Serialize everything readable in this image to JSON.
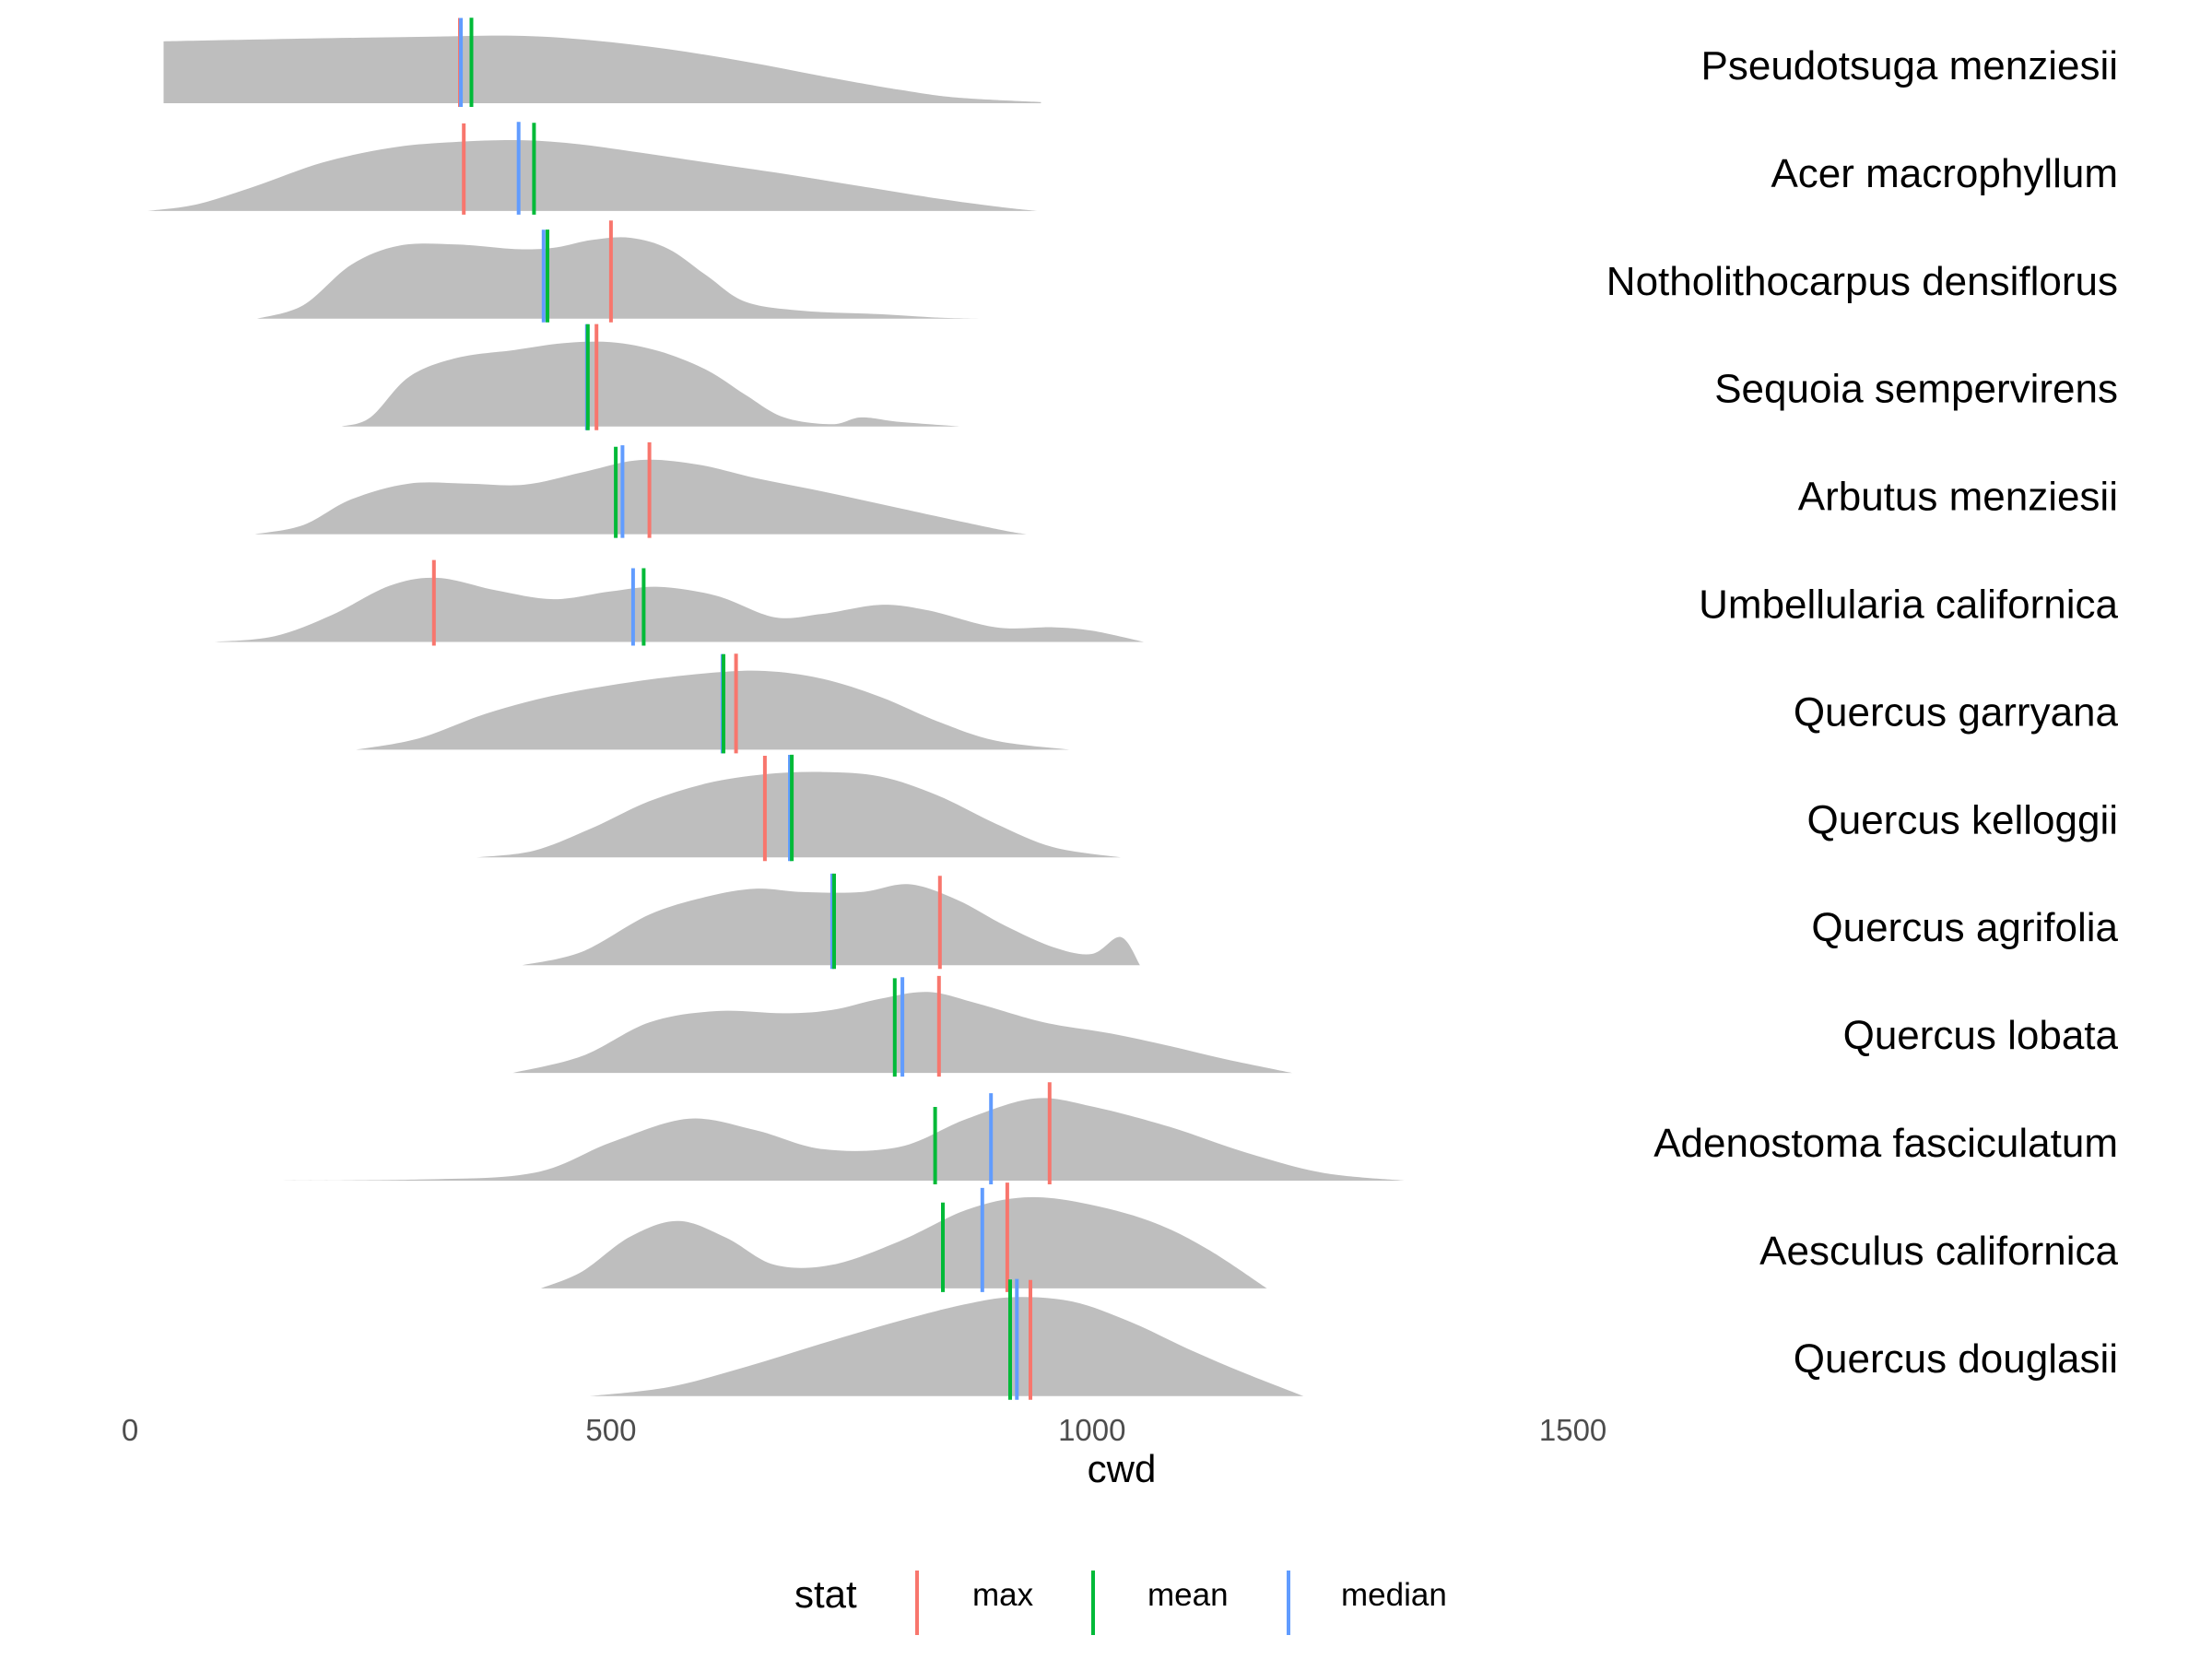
{
  "chart_data": {
    "type": "ridgeline",
    "xlabel": "cwd",
    "ylabel": "",
    "xlim": [
      0,
      1760
    ],
    "x_ticks": [
      {
        "value": 0,
        "label": "0"
      },
      {
        "value": 500,
        "label": "500"
      },
      {
        "value": 1000,
        "label": "1000"
      },
      {
        "value": 1500,
        "label": "1500"
      }
    ],
    "grid": false,
    "density_color": "#bebebe",
    "legend": {
      "title": "stat",
      "position": "bottom",
      "items": [
        {
          "key": "max",
          "label": "max",
          "color": "#f8766d"
        },
        {
          "key": "mean",
          "label": "mean",
          "color": "#00ba38"
        },
        {
          "key": "median",
          "label": "median",
          "color": "#619cff"
        }
      ]
    },
    "series": [
      {
        "name": "Pseudotsuga menziesii",
        "range": [
          35,
          947
        ],
        "density": [
          [
            35,
            0.55
          ],
          [
            150,
            0.57
          ],
          [
            300,
            0.59
          ],
          [
            400,
            0.6
          ],
          [
            480,
            0.56
          ],
          [
            560,
            0.48
          ],
          [
            640,
            0.37
          ],
          [
            720,
            0.24
          ],
          [
            800,
            0.12
          ],
          [
            860,
            0.05
          ],
          [
            947,
            0.01
          ]
        ],
        "max": 343,
        "mean": 355,
        "median": 344
      },
      {
        "name": "Acer macrophyllum",
        "range": [
          18,
          943
        ],
        "density": [
          [
            18,
            0.0
          ],
          [
            70,
            0.06
          ],
          [
            130,
            0.22
          ],
          [
            200,
            0.43
          ],
          [
            270,
            0.56
          ],
          [
            330,
            0.61
          ],
          [
            400,
            0.63
          ],
          [
            460,
            0.6
          ],
          [
            530,
            0.52
          ],
          [
            600,
            0.43
          ],
          [
            680,
            0.33
          ],
          [
            760,
            0.22
          ],
          [
            840,
            0.11
          ],
          [
            900,
            0.04
          ],
          [
            943,
            0.0
          ]
        ],
        "max": 347,
        "mean": 420,
        "median": 404
      },
      {
        "name": "Notholithocarpus densiflorus",
        "range": [
          132,
          888
        ],
        "density": [
          [
            132,
            0.0
          ],
          [
            180,
            0.12
          ],
          [
            230,
            0.48
          ],
          [
            280,
            0.65
          ],
          [
            340,
            0.66
          ],
          [
            400,
            0.62
          ],
          [
            440,
            0.63
          ],
          [
            480,
            0.7
          ],
          [
            520,
            0.72
          ],
          [
            560,
            0.62
          ],
          [
            600,
            0.38
          ],
          [
            640,
            0.15
          ],
          [
            700,
            0.07
          ],
          [
            780,
            0.04
          ],
          [
            840,
            0.01
          ],
          [
            888,
            0.0
          ]
        ],
        "max": 500,
        "mean": 434,
        "median": 430
      },
      {
        "name": "Sequoia sempervirens",
        "range": [
          220,
          862
        ],
        "density": [
          [
            220,
            0.0
          ],
          [
            250,
            0.08
          ],
          [
            290,
            0.44
          ],
          [
            340,
            0.61
          ],
          [
            400,
            0.68
          ],
          [
            450,
            0.74
          ],
          [
            500,
            0.75
          ],
          [
            550,
            0.67
          ],
          [
            600,
            0.5
          ],
          [
            640,
            0.28
          ],
          [
            680,
            0.08
          ],
          [
            730,
            0.02
          ],
          [
            760,
            0.08
          ],
          [
            800,
            0.04
          ],
          [
            862,
            0.0
          ]
        ],
        "max": 485,
        "mean": 476,
        "median": 475
      },
      {
        "name": "Arbutus menziesii",
        "range": [
          130,
          932
        ],
        "density": [
          [
            130,
            0.0
          ],
          [
            180,
            0.08
          ],
          [
            230,
            0.31
          ],
          [
            290,
            0.45
          ],
          [
            350,
            0.45
          ],
          [
            410,
            0.44
          ],
          [
            470,
            0.55
          ],
          [
            530,
            0.66
          ],
          [
            590,
            0.62
          ],
          [
            650,
            0.5
          ],
          [
            720,
            0.38
          ],
          [
            790,
            0.25
          ],
          [
            860,
            0.12
          ],
          [
            910,
            0.03
          ],
          [
            932,
            0.0
          ]
        ],
        "max": 540,
        "mean": 505,
        "median": 512
      },
      {
        "name": "Umbellularia californica",
        "range": [
          88,
          1054
        ],
        "density": [
          [
            88,
            0.0
          ],
          [
            150,
            0.05
          ],
          [
            210,
            0.24
          ],
          [
            270,
            0.5
          ],
          [
            320,
            0.57
          ],
          [
            380,
            0.46
          ],
          [
            440,
            0.38
          ],
          [
            500,
            0.45
          ],
          [
            550,
            0.49
          ],
          [
            610,
            0.41
          ],
          [
            670,
            0.22
          ],
          [
            720,
            0.25
          ],
          [
            780,
            0.33
          ],
          [
            830,
            0.28
          ],
          [
            900,
            0.13
          ],
          [
            960,
            0.13
          ],
          [
            1000,
            0.1
          ],
          [
            1054,
            0.0
          ]
        ],
        "max": 316,
        "mean": 534,
        "median": 523
      },
      {
        "name": "Quercus garryana",
        "range": [
          235,
          977
        ],
        "density": [
          [
            235,
            0.0
          ],
          [
            300,
            0.1
          ],
          [
            370,
            0.32
          ],
          [
            440,
            0.48
          ],
          [
            520,
            0.6
          ],
          [
            600,
            0.68
          ],
          [
            660,
            0.7
          ],
          [
            720,
            0.63
          ],
          [
            780,
            0.47
          ],
          [
            840,
            0.25
          ],
          [
            900,
            0.08
          ],
          [
            977,
            0.0
          ]
        ],
        "max": 630,
        "mean": 617,
        "median": 616
      },
      {
        "name": "Quercus kelloggii",
        "range": [
          360,
          1030
        ],
        "density": [
          [
            360,
            0.0
          ],
          [
            420,
            0.06
          ],
          [
            480,
            0.26
          ],
          [
            540,
            0.5
          ],
          [
            600,
            0.66
          ],
          [
            660,
            0.74
          ],
          [
            720,
            0.76
          ],
          [
            780,
            0.72
          ],
          [
            840,
            0.55
          ],
          [
            900,
            0.3
          ],
          [
            960,
            0.09
          ],
          [
            1030,
            0.0
          ]
        ],
        "max": 660,
        "mean": 688,
        "median": 686
      },
      {
        "name": "Quercus agrifolia",
        "range": [
          408,
          1050
        ],
        "density": [
          [
            408,
            0.0
          ],
          [
            470,
            0.12
          ],
          [
            540,
            0.45
          ],
          [
            600,
            0.61
          ],
          [
            650,
            0.68
          ],
          [
            700,
            0.65
          ],
          [
            760,
            0.65
          ],
          [
            810,
            0.72
          ],
          [
            860,
            0.58
          ],
          [
            910,
            0.35
          ],
          [
            960,
            0.16
          ],
          [
            1000,
            0.1
          ],
          [
            1030,
            0.25
          ],
          [
            1050,
            0.0
          ]
        ],
        "max": 842,
        "mean": 732,
        "median": 730
      },
      {
        "name": "Quercus lobata",
        "range": [
          398,
          1208
        ],
        "density": [
          [
            398,
            0.0
          ],
          [
            470,
            0.15
          ],
          [
            540,
            0.45
          ],
          [
            610,
            0.55
          ],
          [
            680,
            0.53
          ],
          [
            730,
            0.56
          ],
          [
            780,
            0.66
          ],
          [
            830,
            0.72
          ],
          [
            880,
            0.62
          ],
          [
            950,
            0.45
          ],
          [
            1020,
            0.35
          ],
          [
            1080,
            0.24
          ],
          [
            1140,
            0.12
          ],
          [
            1208,
            0.0
          ]
        ],
        "max": 841,
        "mean": 795,
        "median": 803
      },
      {
        "name": "Adenostoma fasciculatum",
        "range": [
          120,
          1325
        ],
        "density": [
          [
            120,
            0.0
          ],
          [
            300,
            0.01
          ],
          [
            420,
            0.07
          ],
          [
            500,
            0.34
          ],
          [
            580,
            0.55
          ],
          [
            650,
            0.45
          ],
          [
            720,
            0.28
          ],
          [
            800,
            0.3
          ],
          [
            870,
            0.55
          ],
          [
            940,
            0.73
          ],
          [
            1000,
            0.66
          ],
          [
            1080,
            0.48
          ],
          [
            1160,
            0.25
          ],
          [
            1240,
            0.07
          ],
          [
            1325,
            0.0
          ]
        ],
        "max": 956,
        "mean": 837,
        "median": 895
      },
      {
        "name": "Aesculus californica",
        "range": [
          427,
          1182
        ],
        "density": [
          [
            427,
            0.0
          ],
          [
            470,
            0.15
          ],
          [
            520,
            0.46
          ],
          [
            570,
            0.6
          ],
          [
            620,
            0.45
          ],
          [
            670,
            0.21
          ],
          [
            730,
            0.21
          ],
          [
            800,
            0.42
          ],
          [
            870,
            0.7
          ],
          [
            930,
            0.81
          ],
          [
            990,
            0.76
          ],
          [
            1060,
            0.6
          ],
          [
            1120,
            0.35
          ],
          [
            1182,
            0.0
          ]
        ],
        "max": 912,
        "mean": 845,
        "median": 886
      },
      {
        "name": "Quercus douglasii",
        "range": [
          478,
          1220
        ],
        "density": [
          [
            478,
            0.0
          ],
          [
            560,
            0.08
          ],
          [
            640,
            0.26
          ],
          [
            720,
            0.47
          ],
          [
            800,
            0.67
          ],
          [
            870,
            0.82
          ],
          [
            920,
            0.88
          ],
          [
            980,
            0.84
          ],
          [
            1040,
            0.66
          ],
          [
            1100,
            0.42
          ],
          [
            1160,
            0.2
          ],
          [
            1220,
            0.0
          ]
        ],
        "max": 936,
        "mean": 915,
        "median": 922
      }
    ]
  }
}
